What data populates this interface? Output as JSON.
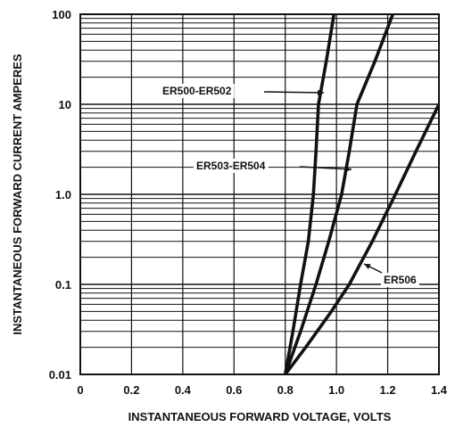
{
  "chart_data": {
    "type": "line",
    "title": "",
    "xlabel": "INSTANTANEOUS FORWARD VOLTAGE, VOLTS",
    "ylabel": "INSTANTANEOUS FORWARD CURRENT AMPERES",
    "xlim": [
      0,
      1.4
    ],
    "ylim": [
      0.01,
      100
    ],
    "yscale": "log",
    "grid": true,
    "x_ticks": [
      "0",
      "0.2",
      "0.4",
      "0.6",
      "0.8",
      "1.0",
      "1.2",
      "1.4"
    ],
    "y_ticks": [
      "0.01",
      "0.1",
      "1.0",
      "10",
      "100"
    ],
    "series": [
      {
        "name": "ER500-ER502",
        "points": [
          [
            0.8,
            0.01
          ],
          [
            0.83,
            0.03
          ],
          [
            0.86,
            0.1
          ],
          [
            0.89,
            0.3
          ],
          [
            0.91,
            1.0
          ],
          [
            0.92,
            3.0
          ],
          [
            0.93,
            10
          ],
          [
            0.96,
            30
          ],
          [
            0.99,
            100
          ]
        ]
      },
      {
        "name": "ER503-ER504",
        "points": [
          [
            0.8,
            0.01
          ],
          [
            0.86,
            0.03
          ],
          [
            0.92,
            0.1
          ],
          [
            0.97,
            0.3
          ],
          [
            1.02,
            1.0
          ],
          [
            1.05,
            3.0
          ],
          [
            1.08,
            10
          ],
          [
            1.15,
            30
          ],
          [
            1.22,
            100
          ]
        ]
      },
      {
        "name": "ER506",
        "points": [
          [
            0.8,
            0.01
          ],
          [
            0.88,
            0.02
          ],
          [
            0.98,
            0.05
          ],
          [
            1.05,
            0.1
          ],
          [
            1.14,
            0.3
          ],
          [
            1.23,
            1.0
          ],
          [
            1.31,
            3.0
          ],
          [
            1.4,
            10
          ]
        ]
      }
    ]
  }
}
